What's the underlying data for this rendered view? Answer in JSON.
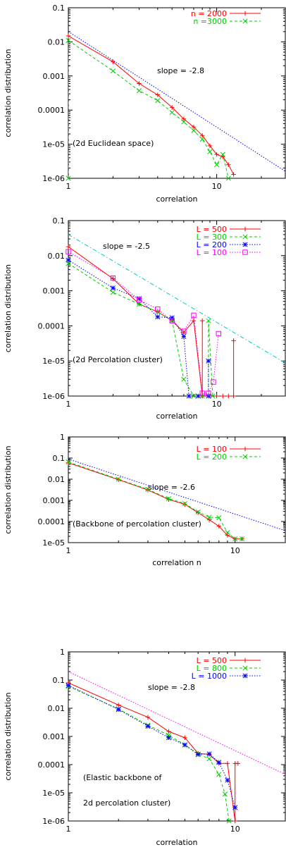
{
  "chart_data": [
    {
      "type": "line",
      "log_x": true,
      "log_y": true,
      "xlim": [
        1,
        29
      ],
      "ylim": [
        1e-06,
        0.1
      ],
      "x_ticks": [
        1,
        10
      ],
      "x_tick_labels": [
        "1",
        "10"
      ],
      "y_ticks": [
        1e-06,
        1e-05,
        0.0001,
        0.001,
        0.01,
        0.1
      ],
      "y_tick_labels": [
        "1e-06",
        "1e-05",
        "0.0001",
        "0.001",
        "0.01",
        "0.1"
      ],
      "xlabel": "correlation",
      "ylabel": "correlation distribution",
      "legend_position": "top-right",
      "annotations": [
        "slope = -2.8",
        "(2d Euclidean space)"
      ],
      "series": [
        {
          "name": "n = 2000",
          "color": "#ff0000",
          "dash": "solid",
          "marker": "plus",
          "x": [
            1,
            2,
            3,
            4,
            5,
            6,
            7,
            8,
            9,
            10,
            11,
            12,
            13
          ],
          "y": [
            0.015,
            0.0026,
            0.0006,
            0.00028,
            0.00012,
            5.5e-05,
            3.2e-05,
            1.8e-05,
            9e-06,
            5e-06,
            4.3e-06,
            2.5e-06,
            1.3e-06
          ]
        },
        {
          "name": "n =3000",
          "color": "#00cc00",
          "dash": "dashed",
          "marker": "cross",
          "x": [
            1,
            1,
            2,
            3,
            4,
            5,
            6,
            7,
            8,
            9,
            10,
            11,
            12
          ],
          "y": [
            1e-06,
            0.011,
            0.0014,
            0.00037,
            0.00019,
            8.5e-05,
            4.5e-05,
            2.5e-05,
            1.4e-05,
            6e-06,
            2.5e-06,
            5e-06,
            1e-06
          ]
        },
        {
          "color": "#0000ff",
          "dash": "dotted",
          "marker": "none",
          "x": [
            1,
            29
          ],
          "y": [
            0.02,
            1.6e-06
          ]
        }
      ]
    },
    {
      "type": "line",
      "log_x": true,
      "log_y": true,
      "xlim": [
        1,
        29
      ],
      "ylim": [
        1e-06,
        0.1
      ],
      "x_ticks": [
        1,
        10
      ],
      "x_tick_labels": [
        "1",
        "10"
      ],
      "y_ticks": [
        1e-06,
        1e-05,
        0.0001,
        0.001,
        0.01,
        0.1
      ],
      "y_tick_labels": [
        "1e-06",
        "1e-05",
        "0.0001",
        "0.001",
        "0.01",
        "0.1"
      ],
      "xlabel": "correlation",
      "ylabel": "correlation distribution",
      "legend_position": "top-right",
      "annotations": [
        "slope = -2.5",
        "(2d Percolation cluster)"
      ],
      "series": [
        {
          "name": "L = 500",
          "color": "#ff0000",
          "dash": "solid",
          "marker": "plus",
          "x": [
            1,
            2,
            3,
            4,
            5,
            6,
            7,
            8,
            8,
            8,
            9,
            10,
            11,
            12,
            13,
            13
          ],
          "y": [
            0.018,
            0.0022,
            0.00042,
            0.00025,
            0.00014,
            6.5e-05,
            0.00014,
            1e-06,
            0.00014,
            1e-06,
            1e-06,
            1e-06,
            1e-06,
            1e-06,
            1e-06,
            3.8e-05
          ]
        },
        {
          "name": "L = 300",
          "color": "#00cc00",
          "dash": "dashed",
          "marker": "cross",
          "x": [
            1,
            2,
            3,
            4,
            5,
            6,
            7,
            7.5,
            8,
            8.8,
            8.8,
            9.4
          ],
          "y": [
            0.006,
            0.0009,
            0.00042,
            0.00025,
            0.00014,
            3e-06,
            1e-06,
            1e-06,
            1e-06,
            1e-06,
            0.00014,
            1e-06
          ]
        },
        {
          "name": "L = 200",
          "color": "#0000ff",
          "dash": "dotted",
          "marker": "star",
          "x": [
            1,
            2,
            3,
            4,
            5,
            6,
            6.5,
            7.5,
            8.8,
            8.8
          ],
          "y": [
            0.0075,
            0.0012,
            0.0006,
            0.00018,
            0.00017,
            5e-05,
            1e-06,
            1e-06,
            1e-06,
            1e-05
          ]
        },
        {
          "name": "L = 100",
          "color": "#ff00ff",
          "dash": "dotted",
          "marker": "square",
          "x": [
            1,
            2,
            3,
            4,
            5,
            6,
            7,
            8,
            8.8,
            9.5,
            10.3
          ],
          "y": [
            0.013,
            0.0023,
            0.00055,
            0.0003,
            0.00014,
            7e-05,
            0.0002,
            1.2e-06,
            1.2e-06,
            2.5e-06,
            6e-05
          ]
        },
        {
          "color": "#00cccc",
          "dash": "dashdot",
          "marker": "none",
          "x": [
            1,
            29
          ],
          "y": [
            0.04,
            8.8e-06
          ]
        }
      ]
    },
    {
      "type": "line",
      "log_x": true,
      "log_y": true,
      "xlim": [
        1,
        20
      ],
      "ylim": [
        1e-05,
        1
      ],
      "x_ticks": [
        1,
        10
      ],
      "x_tick_labels": [
        "1",
        "10"
      ],
      "y_ticks": [
        1e-05,
        0.0001,
        0.001,
        0.01,
        0.1,
        1
      ],
      "y_tick_labels": [
        "1e-05",
        "0.0001",
        "0.001",
        "0.01",
        "0.1",
        "1"
      ],
      "xlabel": "correlation n",
      "ylabel": "correlation distribution",
      "legend_position": "top-right",
      "annotations": [
        "slope = -2.6",
        "(Backbone of percolation cluster)"
      ],
      "series": [
        {
          "name": "L = 100",
          "color": "#ff0000",
          "dash": "solid",
          "marker": "plus",
          "x": [
            1,
            2,
            3,
            4,
            5,
            6,
            7,
            8,
            9,
            10,
            11
          ],
          "y": [
            0.06,
            0.0095,
            0.0031,
            0.0011,
            0.00065,
            0.00026,
            0.00012,
            6e-05,
            2.2e-05,
            1.5e-05,
            1.5e-05
          ]
        },
        {
          "name": "L = 200",
          "color": "#00cc00",
          "dash": "dashed",
          "marker": "cross",
          "x": [
            1,
            2,
            3,
            4,
            5,
            6,
            7,
            8,
            9,
            10,
            11
          ],
          "y": [
            0.065,
            0.01,
            0.0033,
            0.0012,
            0.0007,
            0.00028,
            0.00016,
            0.00015,
            3e-05,
            1.5e-05,
            1.5e-05
          ]
        },
        {
          "color": "#0000ff",
          "dash": "dotted",
          "marker": "none",
          "x": [
            1,
            20
          ],
          "y": [
            0.09,
            3.7e-05
          ]
        }
      ]
    },
    {
      "type": "line",
      "log_x": true,
      "log_y": true,
      "xlim": [
        1,
        20
      ],
      "ylim": [
        1e-06,
        1
      ],
      "x_ticks": [
        1,
        10
      ],
      "x_tick_labels": [
        "1",
        "10"
      ],
      "y_ticks": [
        1e-06,
        1e-05,
        0.0001,
        0.001,
        0.01,
        0.1,
        1
      ],
      "y_tick_labels": [
        "1e-06",
        "1e-05",
        "0.0001",
        "0.001",
        "0.01",
        "0.1",
        "1"
      ],
      "xlabel": "correlation",
      "ylabel": "correlation distribution",
      "legend_position": "top-right",
      "annotations": [
        "slope = -2.8",
        "(Elastic backbone of",
        "2d percolation cluster)"
      ],
      "series": [
        {
          "name": "L = 500",
          "color": "#ff0000",
          "dash": "solid",
          "marker": "plus",
          "x": [
            1,
            2,
            3,
            4,
            5,
            6,
            7,
            8,
            9,
            10,
            10,
            10.4
          ],
          "y": [
            0.08,
            0.013,
            0.0048,
            0.0015,
            0.0009,
            0.00025,
            0.00023,
            0.00011,
            0.00011,
            1e-06,
            0.00011,
            0.00011
          ]
        },
        {
          "name": "L = 800",
          "color": "#00cc00",
          "dash": "dashed",
          "marker": "cross",
          "x": [
            1,
            2,
            3,
            4,
            5,
            6,
            7,
            8,
            8.7,
            9.2
          ],
          "y": [
            0.06,
            0.0095,
            0.0025,
            0.0011,
            0.0005,
            0.00024,
            0.00016,
            4.5e-05,
            9e-06,
            1e-06
          ]
        },
        {
          "name": "L = 1000",
          "color": "#0000ff",
          "dash": "dotted",
          "marker": "star",
          "x": [
            1,
            2,
            3,
            4,
            5,
            6,
            7,
            8,
            9,
            10
          ],
          "y": [
            0.065,
            0.009,
            0.0023,
            0.0009,
            0.0005,
            0.00023,
            0.00024,
            0.00012,
            2.8e-05,
            3e-06
          ]
        },
        {
          "color": "#ff00ff",
          "dash": "dotted",
          "marker": "none",
          "x": [
            1,
            20
          ],
          "y": [
            0.2,
            4.5e-05
          ]
        }
      ]
    }
  ]
}
